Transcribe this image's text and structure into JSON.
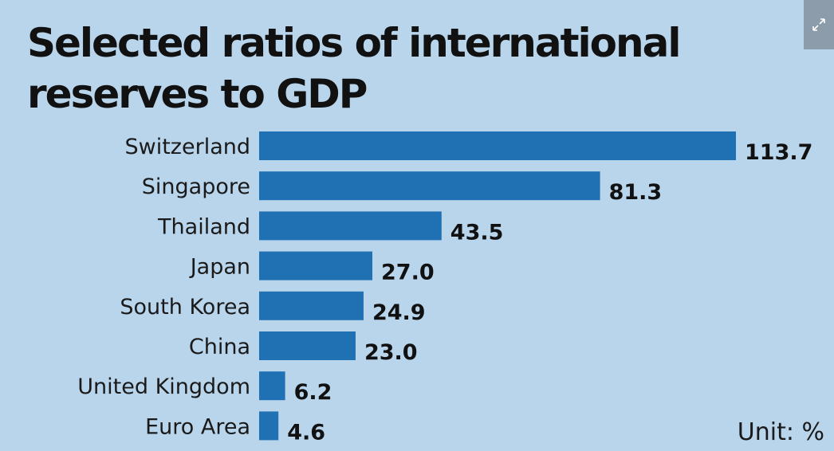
{
  "chart_data": {
    "type": "bar",
    "orientation": "horizontal",
    "title": "Selected ratios of international reserves to GDP",
    "unit_label": "Unit: %",
    "categories": [
      "Switzerland",
      "Singapore",
      "Thailand",
      "Japan",
      "South Korea",
      "China",
      "United Kingdom",
      "Euro Area"
    ],
    "values": [
      113.7,
      81.3,
      43.5,
      27.0,
      24.9,
      23.0,
      6.2,
      4.6
    ],
    "value_labels": [
      "113.7",
      "81.3",
      "43.5",
      "27.0",
      "24.9",
      "23.0",
      "6.2",
      "4.6"
    ],
    "xlim": [
      0,
      113.7
    ],
    "grid": false,
    "bar_color": "#2070b4"
  },
  "icons": {
    "expand": "expand-arrows-icon"
  }
}
